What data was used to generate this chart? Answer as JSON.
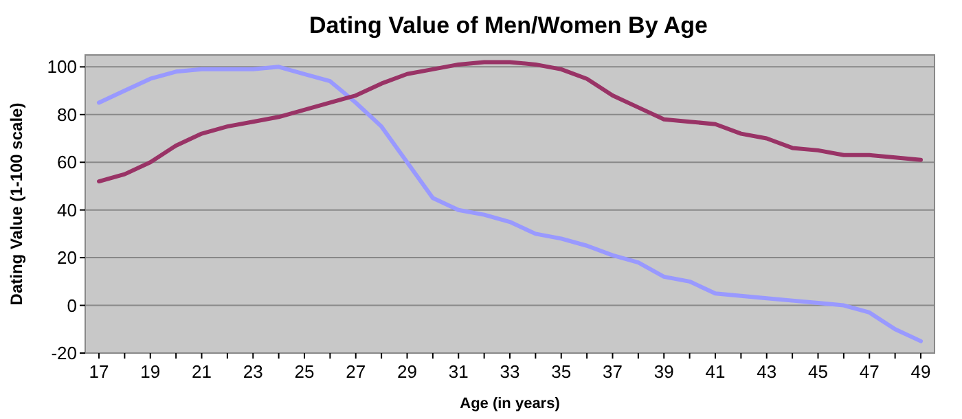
{
  "chart_data": {
    "type": "line",
    "title": "Dating Value of Men/Women By Age",
    "xlabel": "Age (in years)",
    "ylabel": "Dating Value (1-100 scale)",
    "categories": [
      "17",
      null,
      "19",
      null,
      "21",
      null,
      "23",
      null,
      "25",
      null,
      "27",
      null,
      "29",
      null,
      "31",
      null,
      "33",
      null,
      "35",
      null,
      "37",
      null,
      "39",
      null,
      "41",
      null,
      "43",
      null,
      "45",
      null,
      "47",
      null,
      "49"
    ],
    "series": [
      {
        "color": "#9999ff",
        "values": [
          85,
          90,
          95,
          98,
          99,
          99,
          99,
          100,
          97,
          94,
          85,
          75,
          60,
          45,
          40,
          38,
          35,
          30,
          28,
          25,
          21,
          18,
          12,
          10,
          5,
          4,
          3,
          2,
          1,
          0,
          -3,
          -10,
          -15
        ]
      },
      {
        "color": "#993366",
        "values": [
          52,
          55,
          60,
          67,
          72,
          75,
          77,
          79,
          82,
          85,
          88,
          93,
          97,
          99,
          101,
          102,
          102,
          101,
          99,
          95,
          88,
          83,
          78,
          77,
          76,
          72,
          70,
          66,
          65,
          63,
          63,
          62,
          61
        ]
      }
    ],
    "ylim": [
      -20,
      105
    ],
    "yticks": [
      -20,
      0,
      20,
      40,
      60,
      80,
      100
    ],
    "grid": "y",
    "marker": "none",
    "line_style": "solid"
  }
}
